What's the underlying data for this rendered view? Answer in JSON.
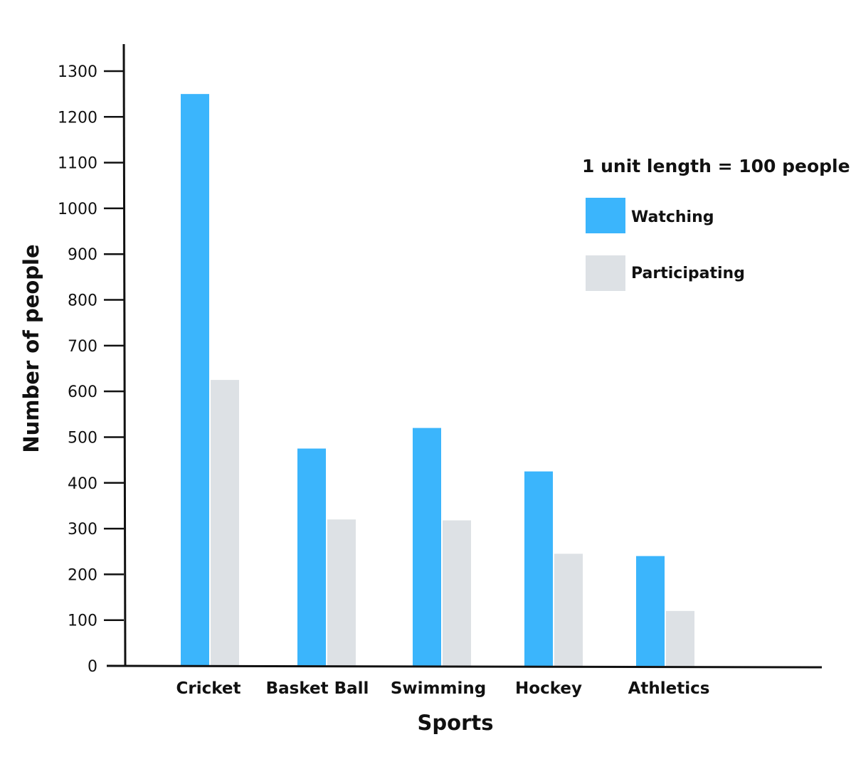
{
  "chart_data": {
    "type": "bar",
    "categories": [
      "Cricket",
      "Basket Ball",
      "Swimming",
      "Hockey",
      "Athletics"
    ],
    "series": [
      {
        "name": "Watching",
        "color": "#3bb5fc",
        "values": [
          1250,
          475,
          520,
          425,
          240
        ]
      },
      {
        "name": "Participating",
        "color": "#dde1e5",
        "values": [
          625,
          320,
          318,
          245,
          120
        ]
      }
    ],
    "yticks": [
      0,
      100,
      200,
      300,
      400,
      500,
      600,
      700,
      800,
      900,
      1000,
      1100,
      1200,
      1300
    ],
    "ylim": [
      0,
      1300
    ],
    "xlabel": "Sports",
    "ylabel": "Number of people",
    "legend_title": "1 unit length = 100 people",
    "legend_position": "top-right",
    "grid": false
  }
}
